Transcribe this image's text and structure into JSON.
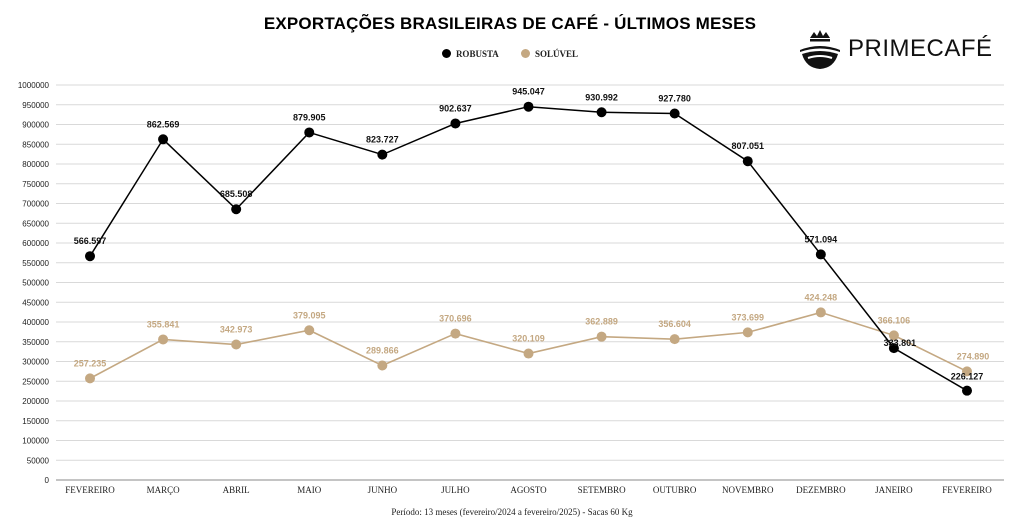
{
  "brand": {
    "name": "PRIMECAFÉ",
    "logo_icon": "coffee-bean-crown-icon"
  },
  "colors": {
    "robusta": "#000000",
    "soluvel": "#c4a882",
    "grid": "#d9d9d9"
  },
  "chart_data": {
    "type": "line",
    "title": "EXPORTAÇÕES BRASILEIRAS DE CAFÉ - ÚLTIMOS MESES",
    "footnote": "Período: 13 meses (fevereiro/2024 a fevereiro/2025) - Sacas 60 Kg",
    "categories": [
      "FEVEREIRO",
      "MARÇO",
      "ABRIL",
      "MAIO",
      "JUNHO",
      "JULHO",
      "AGOSTO",
      "SETEMBRO",
      "OUTUBRO",
      "NOVEMBRO",
      "DEZEMBRO",
      "JANEIRO",
      "FEVEREIRO"
    ],
    "series": [
      {
        "name": "ROBUSTA",
        "values": [
          566597,
          862569,
          685508,
          879905,
          823727,
          902637,
          945047,
          930992,
          927780,
          807051,
          571094,
          333801,
          226127
        ],
        "labels": [
          "566.597",
          "862.569",
          "685.508",
          "879.905",
          "823.727",
          "902.637",
          "945.047",
          "930.992",
          "927.780",
          "807.051",
          "571.094",
          "333.801",
          "226.127"
        ]
      },
      {
        "name": "SOLÚVEL",
        "values": [
          257235,
          355841,
          342973,
          379095,
          289866,
          370696,
          320109,
          362889,
          356604,
          373699,
          424248,
          366106,
          274890
        ],
        "labels": [
          "257.235",
          "355.841",
          "342.973",
          "379.095",
          "289.866",
          "370.696",
          "320.109",
          "362.889",
          "356.604",
          "373.699",
          "424.248",
          "366.106",
          "274.890"
        ]
      }
    ],
    "ylim": [
      0,
      1000000
    ],
    "ytick_step": 50000,
    "grid": true,
    "legend": "top-center"
  }
}
